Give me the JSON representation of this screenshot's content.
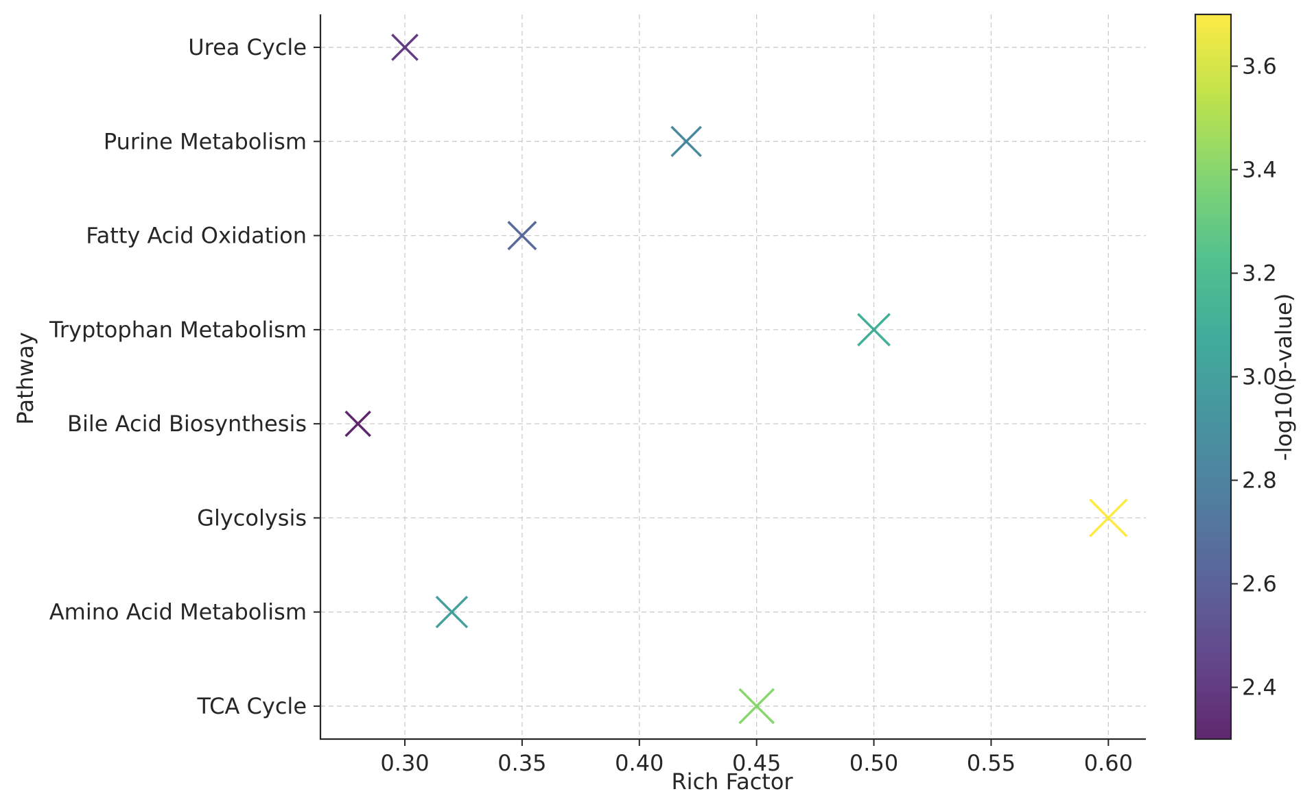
{
  "chart_data": {
    "type": "scatter",
    "xlabel": "Rich Factor",
    "ylabel": "Pathway",
    "xlim": [
      0.264,
      0.616
    ],
    "x_ticks": [
      0.3,
      0.35,
      0.4,
      0.45,
      0.5,
      0.55,
      0.6
    ],
    "x_tick_labels": [
      "0.30",
      "0.35",
      "0.40",
      "0.45",
      "0.50",
      "0.55",
      "0.60"
    ],
    "categories": [
      "TCA Cycle",
      "Amino Acid Metabolism",
      "Glycolysis",
      "Bile Acid Biosynthesis",
      "Tryptophan Metabolism",
      "Fatty Acid Oxidation",
      "Purine Metabolism",
      "Urea Cycle"
    ],
    "marker": "x",
    "grid": true,
    "points": [
      {
        "pathway": "Urea Cycle",
        "rich_factor": 0.3,
        "neg_log10_p": 2.4
      },
      {
        "pathway": "Purine Metabolism",
        "rich_factor": 0.42,
        "neg_log10_p": 2.85
      },
      {
        "pathway": "Fatty Acid Oxidation",
        "rich_factor": 0.35,
        "neg_log10_p": 2.65
      },
      {
        "pathway": "Tryptophan Metabolism",
        "rich_factor": 0.5,
        "neg_log10_p": 3.1
      },
      {
        "pathway": "Bile Acid Biosynthesis",
        "rich_factor": 0.28,
        "neg_log10_p": 2.3
      },
      {
        "pathway": "Glycolysis",
        "rich_factor": 0.6,
        "neg_log10_p": 3.7
      },
      {
        "pathway": "Amino Acid Metabolism",
        "rich_factor": 0.32,
        "neg_log10_p": 3.0
      },
      {
        "pathway": "TCA Cycle",
        "rich_factor": 0.45,
        "neg_log10_p": 3.4
      }
    ],
    "colorbar": {
      "label": "-log10(p-value)",
      "range": [
        2.3,
        3.7
      ],
      "ticks": [
        2.4,
        2.6,
        2.8,
        3.0,
        3.2,
        3.4,
        3.6
      ],
      "tick_labels": [
        "2.4",
        "2.6",
        "2.8",
        "3.0",
        "3.2",
        "3.4",
        "3.6"
      ],
      "colormap": [
        "#440154",
        "#482878",
        "#3e4989",
        "#31688e",
        "#26828e",
        "#1f9e89",
        "#35b779",
        "#6ece58",
        "#b5de2b",
        "#fde725"
      ]
    }
  }
}
